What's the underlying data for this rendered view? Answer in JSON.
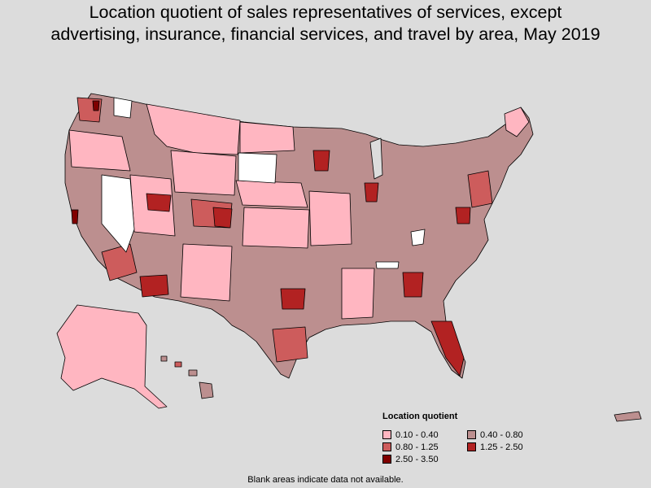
{
  "title_line1": "Location quotient of sales representatives of services, except",
  "title_line2": "advertising, insurance, financial services, and travel by area, May 2019",
  "legend": {
    "title": "Location quotient",
    "items": [
      {
        "label": "0.10 - 0.40",
        "color": "#ffb6c1"
      },
      {
        "label": "0.40 - 0.80",
        "color": "#bc8f8f"
      },
      {
        "label": "0.80 - 1.25",
        "color": "#cd5c5c"
      },
      {
        "label": "1.25 - 2.50",
        "color": "#b22222"
      },
      {
        "label": "2.50 - 3.50",
        "color": "#800000"
      }
    ]
  },
  "footnote": "Blank areas indicate data not available.",
  "colors": {
    "background": "#dcdcdc",
    "no_data": "#ffffff",
    "border": "#000000"
  }
}
